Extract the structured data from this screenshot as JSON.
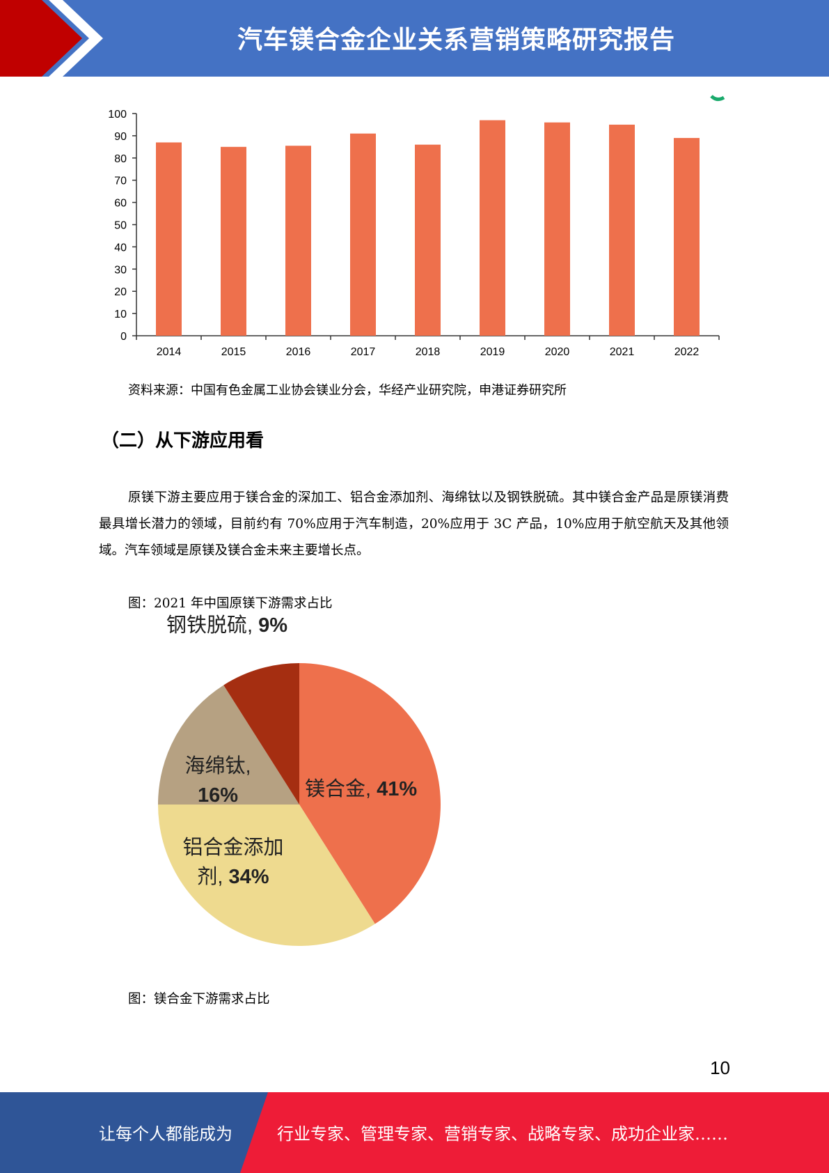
{
  "header": {
    "title": "汽车镁合金企业关系营销策略研究报告"
  },
  "colors": {
    "header_blue": "#4472c4",
    "header_red": "#c00000",
    "bar": "#ee704c",
    "footer_blue": "#2f5597",
    "footer_red": "#ee1c37",
    "pie_mg_alloy": "#ee704c",
    "pie_al_additive": "#eeda8f",
    "pie_sponge_ti": "#b6a182",
    "pie_steel": "#a52e11"
  },
  "chart_data": [
    {
      "type": "bar",
      "categories": [
        "2014",
        "2015",
        "2016",
        "2017",
        "2018",
        "2019",
        "2020",
        "2021",
        "2022"
      ],
      "values": [
        87,
        85,
        85.5,
        91,
        86,
        97,
        96,
        95,
        89
      ],
      "y_ticks": [
        "0",
        "10",
        "20",
        "30",
        "40",
        "50",
        "60",
        "70",
        "80",
        "90",
        "100"
      ],
      "ylim": [
        0,
        100
      ],
      "title": "",
      "xlabel": "",
      "ylabel": "",
      "grid": false
    },
    {
      "type": "pie",
      "slices": [
        {
          "label_line1": "镁合金,",
          "value_text": "41%",
          "value": 41
        },
        {
          "label_line1": "铝合金添加",
          "label_line2": "剂,",
          "value_text": "34%",
          "value": 34
        },
        {
          "label_line1": "海绵钛,",
          "value_text": "16%",
          "value": 16
        },
        {
          "label_line1": "钢铁脱硫,",
          "value_text": "9%",
          "value": 9
        }
      ]
    }
  ],
  "source_note": "资料来源：中国有色金属工业协会镁业分会，华经产业研究院，申港证券研究所",
  "section_title": "（二）从下游应用看",
  "paragraph": "原镁下游主要应用于镁合金的深加工、铝合金添加剂、海绵钛以及钢铁脱硫。其中镁合金产品是原镁消费最具增长潜力的领域，目前约有 70%应用于汽车制造，20%应用于 3C 产品，10%应用于航空航天及其他领域。汽车领域是原镁及镁合金未来主要增长点。",
  "figure1_caption": "图：2021 年中国原镁下游需求占比",
  "figure2_caption": "图：镁合金下游需求占比",
  "page_number": "10",
  "footer": {
    "left_text": "让每个人都能成为",
    "right_text": "行业专家、管理专家、营销专家、战略专家、成功企业家……"
  }
}
